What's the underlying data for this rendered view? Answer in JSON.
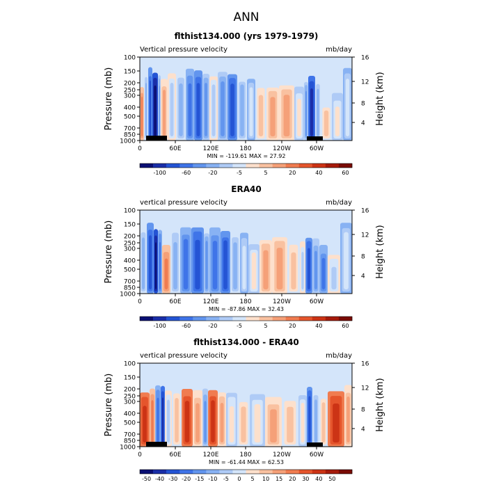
{
  "figure_title": "ANN",
  "chart_data": [
    {
      "type": "heatmap",
      "title": "flthist134.000 (yrs 1979-1979)",
      "left_label": "Vertical pressure velocity",
      "right_label": "mb/day",
      "ylabel": "Pressure (mb)",
      "y2label": "Height (km)",
      "pressure_ticks": [
        "100",
        "150",
        "200",
        "250",
        "300",
        "400",
        "500",
        "700",
        "850",
        "1000"
      ],
      "height_ticks": [
        "16",
        "12",
        "8",
        "4"
      ],
      "x_ticks": [
        "0",
        "60E",
        "120E",
        "180",
        "120W",
        "60W"
      ],
      "stats": "MIN = -119.61   MAX =  27.92",
      "colorbar_labels": [
        "-100",
        "-60",
        "-20",
        "-5",
        "5",
        "20",
        "40",
        "60"
      ],
      "colorbar_colors": [
        "#0a0f73",
        "#1a2ea8",
        "#2454d4",
        "#3f74e8",
        "#6295ee",
        "#88b2f3",
        "#afcbf6",
        "#d4e5fa",
        "#fde0cc",
        "#f9c1a0",
        "#f5a078",
        "#f07c50",
        "#e5552c",
        "#cc3315",
        "#a61b0b",
        "#7a0c05"
      ]
    },
    {
      "type": "heatmap",
      "title": "ERA40",
      "left_label": "vertical pressure velocity",
      "right_label": "mb/day",
      "ylabel": "Pressure (mb)",
      "y2label": "Height (km)",
      "pressure_ticks": [
        "100",
        "150",
        "200",
        "250",
        "300",
        "400",
        "500",
        "700",
        "850",
        "1000"
      ],
      "height_ticks": [
        "16",
        "12",
        "8",
        "4"
      ],
      "x_ticks": [
        "0",
        "60E",
        "120E",
        "180",
        "120W",
        "60W"
      ],
      "stats": "MIN = -87.86   MAX =  32.43",
      "colorbar_labels": [
        "-100",
        "-60",
        "-20",
        "-5",
        "5",
        "20",
        "40",
        "60"
      ],
      "colorbar_colors": [
        "#0a0f73",
        "#1a2ea8",
        "#2454d4",
        "#3f74e8",
        "#6295ee",
        "#88b2f3",
        "#afcbf6",
        "#d4e5fa",
        "#fde0cc",
        "#f9c1a0",
        "#f5a078",
        "#f07c50",
        "#e5552c",
        "#cc3315",
        "#a61b0b",
        "#7a0c05"
      ]
    },
    {
      "type": "heatmap",
      "title": "flthist134.000 - ERA40",
      "left_label": "vertical pressure velocity",
      "right_label": "mb/day",
      "ylabel": "Pressure (mb)",
      "y2label": "Height (km)",
      "pressure_ticks": [
        "100",
        "150",
        "200",
        "250",
        "300",
        "400",
        "500",
        "700",
        "850",
        "1000"
      ],
      "height_ticks": [
        "16",
        "12",
        "8",
        "4"
      ],
      "x_ticks": [
        "0",
        "60E",
        "120E",
        "180",
        "120W",
        "60W"
      ],
      "stats": "MIN = -61.44   MAX =  62.53",
      "colorbar_labels": [
        "-50",
        "-40",
        "-30",
        "-20",
        "-15",
        "-10",
        "-5",
        "0",
        "5",
        "10",
        "15",
        "20",
        "30",
        "40",
        "50"
      ],
      "colorbar_colors": [
        "#0a0f73",
        "#1a2ea8",
        "#2454d4",
        "#3f74e8",
        "#6295ee",
        "#88b2f3",
        "#afcbf6",
        "#d4e5fa",
        "#fde0cc",
        "#f9c1a0",
        "#f5a078",
        "#f07c50",
        "#e5552c",
        "#cc3315",
        "#a61b0b",
        "#7a0c05"
      ]
    }
  ]
}
